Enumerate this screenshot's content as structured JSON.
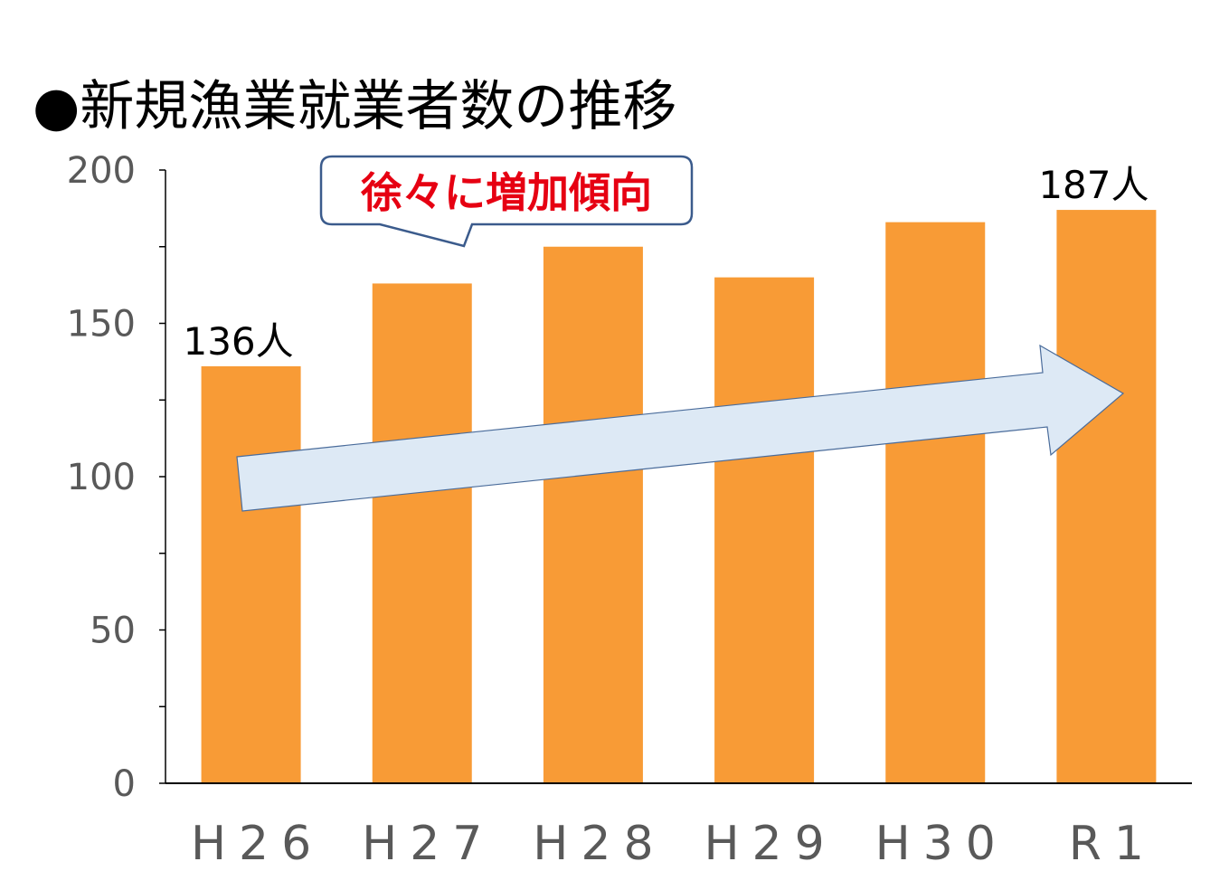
{
  "colors": {
    "bar": "#F89B36",
    "axis_text": "#595959",
    "callout_text": "#E60012",
    "callout_border": "#3B5B8C",
    "arrow_fill": "#DDE9F5",
    "arrow_stroke": "#4A6C9B"
  },
  "chart_data": {
    "type": "bar",
    "title": "●新規漁業就業者数の推移",
    "xlabel": "",
    "ylabel": "",
    "categories": [
      "H26",
      "H27",
      "H28",
      "H29",
      "H30",
      "R1"
    ],
    "values": [
      136,
      163,
      175,
      165,
      183,
      187
    ],
    "ylim": [
      0,
      200
    ],
    "yticks": [
      0,
      50,
      100,
      150,
      200
    ],
    "grid": false,
    "legend": "none",
    "data_labels": [
      {
        "category": "H26",
        "text": "136人"
      },
      {
        "category": "R1",
        "text": "187人"
      }
    ],
    "callout": "徐々に増加傾向"
  }
}
